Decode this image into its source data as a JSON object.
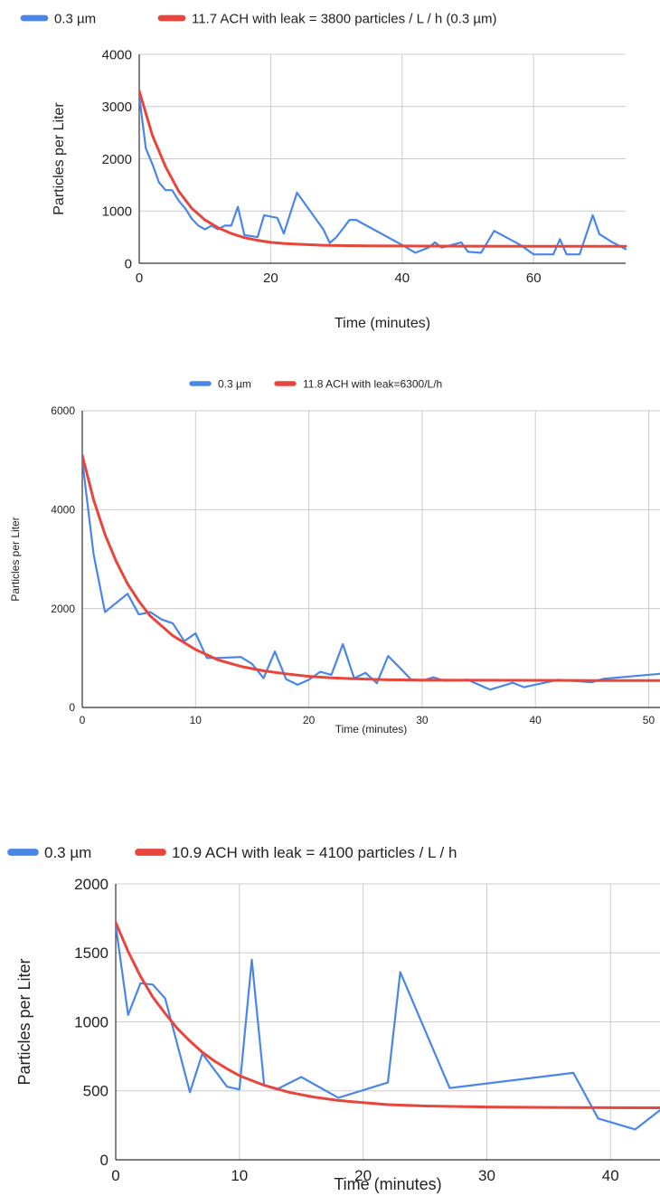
{
  "chart_data": [
    {
      "type": "line",
      "title": "",
      "xlabel": "Time (minutes)",
      "ylabel": "Particles per Liter",
      "xlim": [
        0,
        74
      ],
      "ylim": [
        0,
        4000
      ],
      "x_ticks": [
        0,
        20,
        40,
        60
      ],
      "y_ticks": [
        0,
        1000,
        2000,
        3000,
        4000
      ],
      "grid": true,
      "legend_position": "top",
      "series": [
        {
          "name": "0.3 µm",
          "color": "#4a86e8",
          "x": [
            0,
            1,
            2,
            3,
            4,
            5,
            6,
            7,
            8,
            9,
            10,
            11,
            12,
            13,
            14,
            15,
            16,
            18,
            19,
            21,
            22,
            24,
            28,
            29,
            30,
            32,
            33,
            40,
            42,
            44,
            45,
            46,
            49,
            50,
            52,
            54,
            58,
            60,
            62,
            63,
            64,
            65,
            67,
            69,
            70,
            72,
            74
          ],
          "y": [
            3200,
            2200,
            1900,
            1550,
            1400,
            1400,
            1200,
            1050,
            850,
            720,
            650,
            720,
            650,
            720,
            720,
            1080,
            540,
            500,
            920,
            870,
            570,
            1350,
            650,
            390,
            500,
            830,
            830,
            350,
            200,
            300,
            400,
            300,
            400,
            220,
            200,
            620,
            350,
            170,
            170,
            170,
            460,
            170,
            170,
            920,
            560,
            400,
            270
          ]
        },
        {
          "name": "11.7 ACH with leak = 3800 particles / L / h (0.3 µm)",
          "color": "#e8453c",
          "x": [
            0,
            2,
            4,
            6,
            8,
            10,
            12,
            14,
            16,
            18,
            20,
            22,
            24,
            26,
            28,
            30,
            35,
            40,
            50,
            60,
            70,
            74
          ],
          "y": [
            3300,
            2450,
            1850,
            1380,
            1050,
            830,
            680,
            570,
            490,
            440,
            400,
            380,
            365,
            355,
            345,
            340,
            332,
            330,
            327,
            325,
            325,
            325
          ]
        }
      ]
    },
    {
      "type": "line",
      "title": "",
      "xlabel": "Time (minutes)",
      "ylabel": "Particles per Liter",
      "xlim": [
        0,
        51
      ],
      "ylim": [
        0,
        6000
      ],
      "x_ticks": [
        0,
        10,
        20,
        30,
        40,
        50
      ],
      "y_ticks": [
        0,
        2000,
        4000,
        6000
      ],
      "grid": true,
      "legend_position": "top",
      "series": [
        {
          "name": "0.3 µm",
          "color": "#4a86e8",
          "x": [
            0,
            1,
            2,
            4,
            5,
            6,
            7,
            8,
            9,
            10,
            11,
            12,
            14,
            15,
            16,
            17,
            18,
            19,
            20,
            21,
            22,
            23,
            24,
            25,
            26,
            27,
            28,
            29,
            30,
            31,
            32,
            34,
            36,
            38,
            39,
            42,
            45,
            46,
            51
          ],
          "y": [
            5000,
            3100,
            1930,
            2300,
            1880,
            1930,
            1780,
            1700,
            1340,
            1500,
            1000,
            1000,
            1020,
            880,
            590,
            1130,
            570,
            460,
            560,
            720,
            660,
            1280,
            590,
            700,
            490,
            1040,
            810,
            570,
            540,
            610,
            540,
            560,
            360,
            500,
            410,
            560,
            510,
            580,
            680
          ]
        },
        {
          "name": "11.8 ACH with leak=6300/L/h",
          "color": "#e8453c",
          "x": [
            0,
            1,
            2,
            3,
            4,
            5,
            6,
            8,
            10,
            12,
            14,
            16,
            18,
            20,
            22,
            24,
            27,
            30,
            35,
            40,
            45,
            51
          ],
          "y": [
            5100,
            4200,
            3500,
            2950,
            2500,
            2150,
            1850,
            1450,
            1170,
            960,
            830,
            740,
            680,
            630,
            600,
            580,
            560,
            555,
            550,
            548,
            546,
            545
          ]
        }
      ]
    },
    {
      "type": "line",
      "title": "",
      "xlabel": "Time (minutes)",
      "ylabel": "Particles per Liter",
      "xlim": [
        0,
        44
      ],
      "ylim": [
        0,
        2000
      ],
      "x_ticks": [
        0,
        10,
        20,
        30,
        40
      ],
      "y_ticks": [
        0,
        500,
        1000,
        1500,
        2000
      ],
      "grid": true,
      "legend_position": "top-left",
      "series": [
        {
          "name": "0.3 µm",
          "color": "#4a86e8",
          "x": [
            0,
            1,
            2,
            3,
            4,
            6,
            7,
            9,
            10,
            11,
            12,
            13,
            15,
            18,
            22,
            23,
            27,
            37,
            39,
            42,
            44
          ],
          "y": [
            1700,
            1050,
            1280,
            1270,
            1170,
            490,
            770,
            530,
            510,
            1450,
            540,
            510,
            600,
            450,
            560,
            1360,
            520,
            630,
            300,
            220,
            360
          ]
        },
        {
          "name": "10.9 ACH with leak = 4100 particles / L / h",
          "color": "#e8453c",
          "x": [
            0,
            1,
            2,
            3,
            4,
            5,
            6,
            7,
            8,
            9,
            10,
            12,
            14,
            16,
            18,
            20,
            22,
            25,
            30,
            35,
            40,
            44
          ],
          "y": [
            1720,
            1510,
            1330,
            1180,
            1060,
            950,
            860,
            780,
            715,
            660,
            610,
            540,
            490,
            455,
            430,
            415,
            400,
            390,
            383,
            380,
            378,
            377
          ]
        }
      ]
    }
  ]
}
